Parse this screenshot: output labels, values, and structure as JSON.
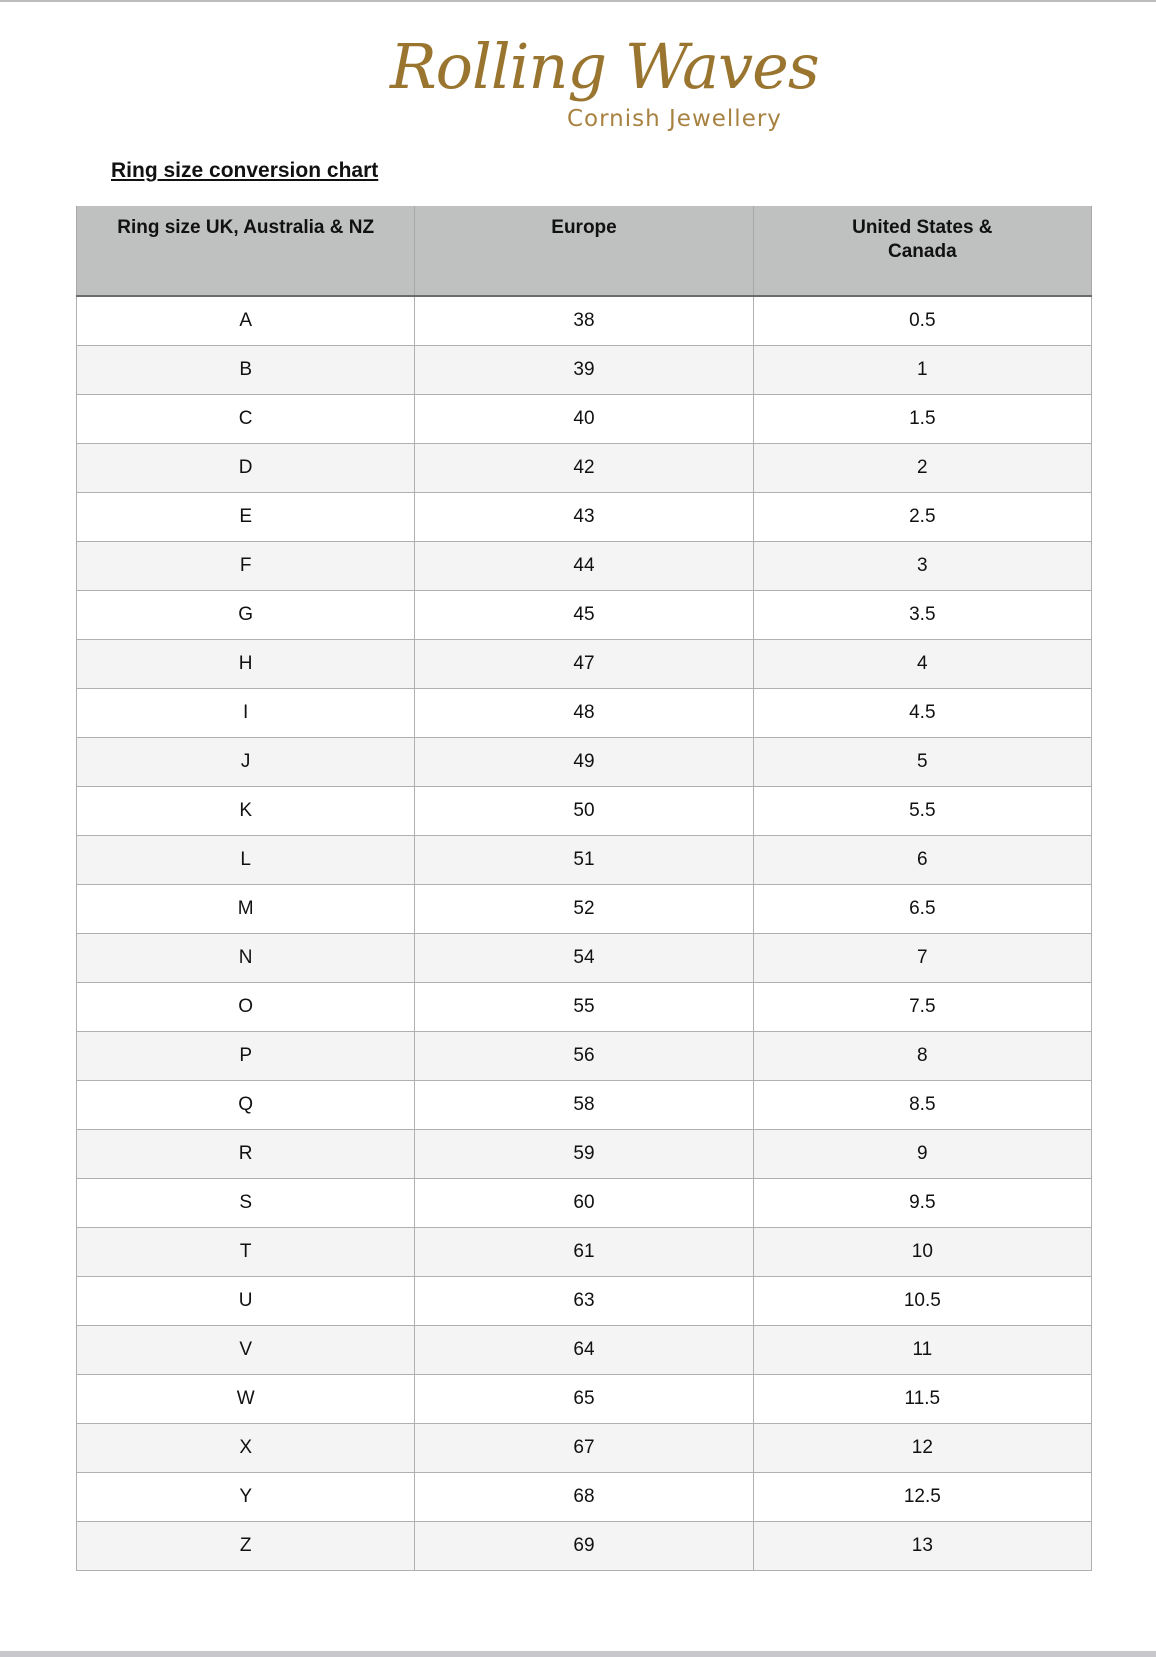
{
  "logo": {
    "main": "Rolling Waves",
    "sub": "Cornish Jewellery",
    "color": "#9a7530"
  },
  "title": "Ring size conversion chart",
  "table": {
    "headers": [
      "Ring size UK, Australia & NZ",
      "Europe",
      "United States & Canada"
    ],
    "rows": [
      [
        "A",
        "38",
        "0.5"
      ],
      [
        "B",
        "39",
        "1"
      ],
      [
        "C",
        "40",
        "1.5"
      ],
      [
        "D",
        "42",
        "2"
      ],
      [
        "E",
        "43",
        "2.5"
      ],
      [
        "F",
        "44",
        "3"
      ],
      [
        "G",
        "45",
        "3.5"
      ],
      [
        "H",
        "47",
        "4"
      ],
      [
        "I",
        "48",
        "4.5"
      ],
      [
        "J",
        "49",
        "5"
      ],
      [
        "K",
        "50",
        "5.5"
      ],
      [
        "L",
        "51",
        "6"
      ],
      [
        "M",
        "52",
        "6.5"
      ],
      [
        "N",
        "54",
        "7"
      ],
      [
        "O",
        "55",
        "7.5"
      ],
      [
        "P",
        "56",
        "8"
      ],
      [
        "Q",
        "58",
        "8.5"
      ],
      [
        "R",
        "59",
        "9"
      ],
      [
        "S",
        "60",
        "9.5"
      ],
      [
        "T",
        "61",
        "10"
      ],
      [
        "U",
        "63",
        "10.5"
      ],
      [
        "V",
        "64",
        "11"
      ],
      [
        "W",
        "65",
        "11.5"
      ],
      [
        "X",
        "67",
        "12"
      ],
      [
        "Y",
        "68",
        "12.5"
      ],
      [
        "Z",
        "69",
        "13"
      ]
    ]
  }
}
